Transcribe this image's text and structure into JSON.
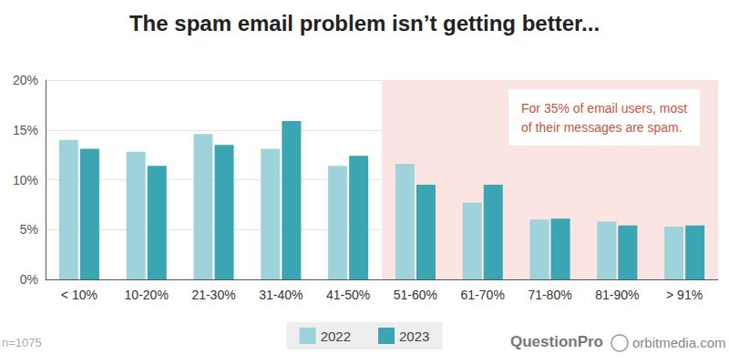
{
  "chart_data": {
    "type": "bar",
    "title": "The spam email problem isn’t getting better...",
    "categories": [
      "< 10%",
      "10-20%",
      "21-30%",
      "31-40%",
      "41-50%",
      "51-60%",
      "61-70%",
      "71-80%",
      "81-90%",
      "> 91%"
    ],
    "series": [
      {
        "name": "2022",
        "color": "#9fd3dc",
        "values": [
          14.0,
          12.8,
          14.6,
          13.1,
          11.4,
          11.6,
          7.7,
          6.0,
          5.8,
          5.3
        ]
      },
      {
        "name": "2023",
        "color": "#3aa5b3",
        "values": [
          13.1,
          11.4,
          13.5,
          15.9,
          12.4,
          9.5,
          9.5,
          6.1,
          5.4,
          5.4
        ]
      }
    ],
    "ylim": [
      0,
      20
    ],
    "yticks": [
      {
        "value": 0,
        "label": "0%"
      },
      {
        "value": 5,
        "label": "5%"
      },
      {
        "value": 10,
        "label": "10%"
      },
      {
        "value": 15,
        "label": "15%"
      },
      {
        "value": 20,
        "label": "20%"
      }
    ],
    "grid": true,
    "legend": "bottom",
    "highlight": {
      "from": "51-60%",
      "to": "> 91%",
      "color": "#fbe5e3"
    },
    "annotation": "For 35% of email users, most\nof their messages are spam.",
    "note": "n=1075",
    "sources": [
      "QuestionPro",
      "orbitmedia.com"
    ]
  }
}
